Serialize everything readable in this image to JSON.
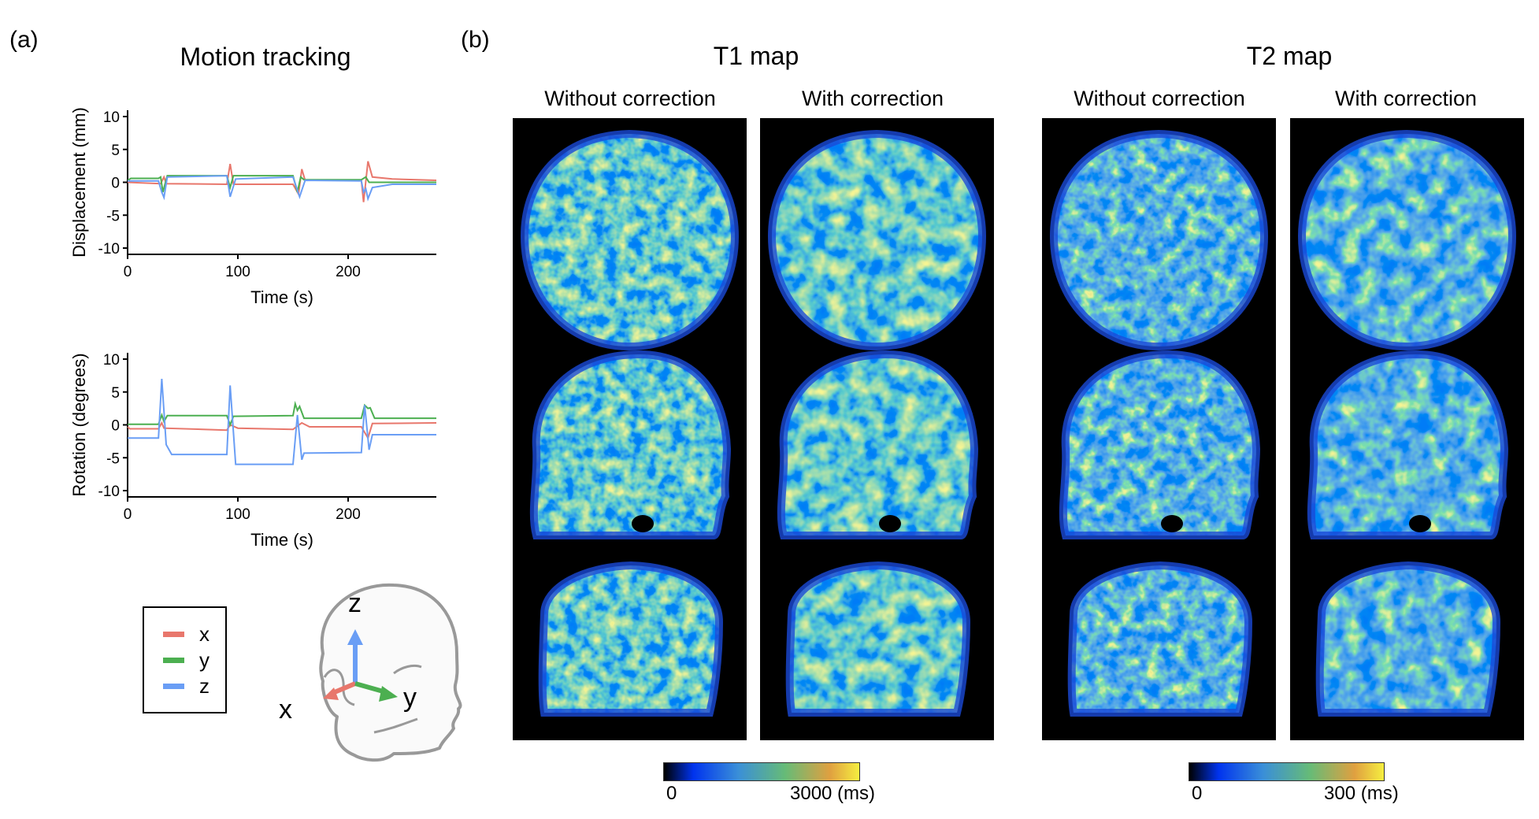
{
  "panel_a": {
    "label": "(a)",
    "title": "Motion tracking",
    "legend": [
      {
        "name": "x",
        "color": "#e8776c"
      },
      {
        "name": "y",
        "color": "#4caf50"
      },
      {
        "name": "z",
        "color": "#6a9ef5"
      }
    ],
    "head_axes": {
      "x": "x",
      "y": "y",
      "z": "z"
    }
  },
  "panel_b": {
    "label": "(b)",
    "t1": {
      "title": "T1 map",
      "without": "Without correction",
      "with": "With correction",
      "cbar_min": "0",
      "cbar_max": "3000 (ms)"
    },
    "t2": {
      "title": "T2 map",
      "without": "Without correction",
      "with": "With correction",
      "cbar_min": "0",
      "cbar_max": "300 (ms)"
    },
    "views": [
      "axial",
      "sagittal",
      "coronal"
    ],
    "colormap": [
      "#000000",
      "#0033ee",
      "#3a8fd8",
      "#66bb77",
      "#e0a040",
      "#f5ee40"
    ]
  },
  "chart_data": [
    {
      "type": "line",
      "xlabel": "Time (s)",
      "ylabel": "Displacement (mm)",
      "xlim": [
        0,
        280
      ],
      "ylim": [
        -11,
        11
      ],
      "xticks": [
        "0",
        "100",
        "200"
      ],
      "yticks": [
        "10",
        "5",
        "0",
        "-5",
        "-10"
      ],
      "grid": false,
      "series": [
        {
          "name": "x",
          "color": "#e8776c",
          "points": [
            [
              0,
              0
            ],
            [
              30,
              -0.2
            ],
            [
              33,
              0.8
            ],
            [
              35,
              -0.2
            ],
            [
              90,
              -0.3
            ],
            [
              93,
              2.8
            ],
            [
              96,
              -0.3
            ],
            [
              150,
              -0.3
            ],
            [
              155,
              -1.8
            ],
            [
              158,
              2.0
            ],
            [
              161,
              0.3
            ],
            [
              212,
              0.3
            ],
            [
              214,
              -3
            ],
            [
              218,
              3.2
            ],
            [
              222,
              0.8
            ],
            [
              240,
              0.5
            ],
            [
              280,
              0.3
            ]
          ]
        },
        {
          "name": "y",
          "color": "#4caf50",
          "points": [
            [
              0,
              0.3
            ],
            [
              3,
              0.6
            ],
            [
              28,
              0.6
            ],
            [
              30,
              0.8
            ],
            [
              32,
              -1.5
            ],
            [
              36,
              1.0
            ],
            [
              90,
              1.0
            ],
            [
              93,
              -0.8
            ],
            [
              96,
              1.0
            ],
            [
              150,
              1.0
            ],
            [
              154,
              -1.5
            ],
            [
              157,
              0.8
            ],
            [
              160,
              0.4
            ],
            [
              212,
              0.4
            ],
            [
              216,
              0.8
            ],
            [
              219,
              0
            ],
            [
              280,
              0
            ]
          ]
        },
        {
          "name": "z",
          "color": "#6a9ef5",
          "points": [
            [
              0,
              0.2
            ],
            [
              28,
              0.2
            ],
            [
              31,
              -1.5
            ],
            [
              33,
              -2.3
            ],
            [
              36,
              0.8
            ],
            [
              90,
              1.0
            ],
            [
              93,
              -2.2
            ],
            [
              98,
              0.5
            ],
            [
              150,
              0.8
            ],
            [
              156,
              -2.2
            ],
            [
              161,
              0.3
            ],
            [
              212,
              0.2
            ],
            [
              214,
              -1.5
            ],
            [
              216,
              -1
            ],
            [
              218,
              -2.5
            ],
            [
              222,
              -0.8
            ],
            [
              240,
              -0.3
            ],
            [
              280,
              -0.3
            ]
          ]
        }
      ]
    },
    {
      "type": "line",
      "xlabel": "Time (s)",
      "ylabel": "Rotation (degrees)",
      "xlim": [
        0,
        280
      ],
      "ylim": [
        -11,
        11
      ],
      "xticks": [
        "0",
        "100",
        "200"
      ],
      "yticks": [
        "10",
        "5",
        "0",
        "-5",
        "-10"
      ],
      "grid": false,
      "series": [
        {
          "name": "x",
          "color": "#e8776c",
          "points": [
            [
              0,
              -0.3
            ],
            [
              2,
              -0.6
            ],
            [
              28,
              -0.6
            ],
            [
              31,
              0.3
            ],
            [
              33,
              -0.5
            ],
            [
              90,
              -0.8
            ],
            [
              93,
              0
            ],
            [
              100,
              -0.5
            ],
            [
              150,
              -0.7
            ],
            [
              158,
              0.3
            ],
            [
              165,
              -0.3
            ],
            [
              212,
              -0.3
            ],
            [
              218,
              -2
            ],
            [
              222,
              0.2
            ],
            [
              280,
              0.3
            ]
          ]
        },
        {
          "name": "y",
          "color": "#4caf50",
          "points": [
            [
              0,
              0.1
            ],
            [
              28,
              0.1
            ],
            [
              31,
              1.5
            ],
            [
              33,
              0.5
            ],
            [
              36,
              1.4
            ],
            [
              90,
              1.4
            ],
            [
              93,
              0
            ],
            [
              96,
              1.3
            ],
            [
              150,
              1.4
            ],
            [
              152,
              3.2
            ],
            [
              154,
              2.2
            ],
            [
              156,
              2.8
            ],
            [
              160,
              1.0
            ],
            [
              212,
              1.0
            ],
            [
              215,
              3.0
            ],
            [
              218,
              2.5
            ],
            [
              220,
              2.6
            ],
            [
              224,
              1.0
            ],
            [
              280,
              1.0
            ]
          ]
        },
        {
          "name": "z",
          "color": "#6a9ef5",
          "points": [
            [
              0,
              -2
            ],
            [
              28,
              -2
            ],
            [
              31,
              7
            ],
            [
              35,
              -3
            ],
            [
              40,
              -4.5
            ],
            [
              90,
              -4.5
            ],
            [
              93,
              6
            ],
            [
              98,
              -6
            ],
            [
              150,
              -6
            ],
            [
              154,
              1.5
            ],
            [
              158,
              -5.3
            ],
            [
              160,
              -4.3
            ],
            [
              212,
              -4.2
            ],
            [
              215,
              3
            ],
            [
              219,
              -3.8
            ],
            [
              222,
              -1.5
            ],
            [
              280,
              -1.5
            ]
          ]
        }
      ]
    }
  ]
}
